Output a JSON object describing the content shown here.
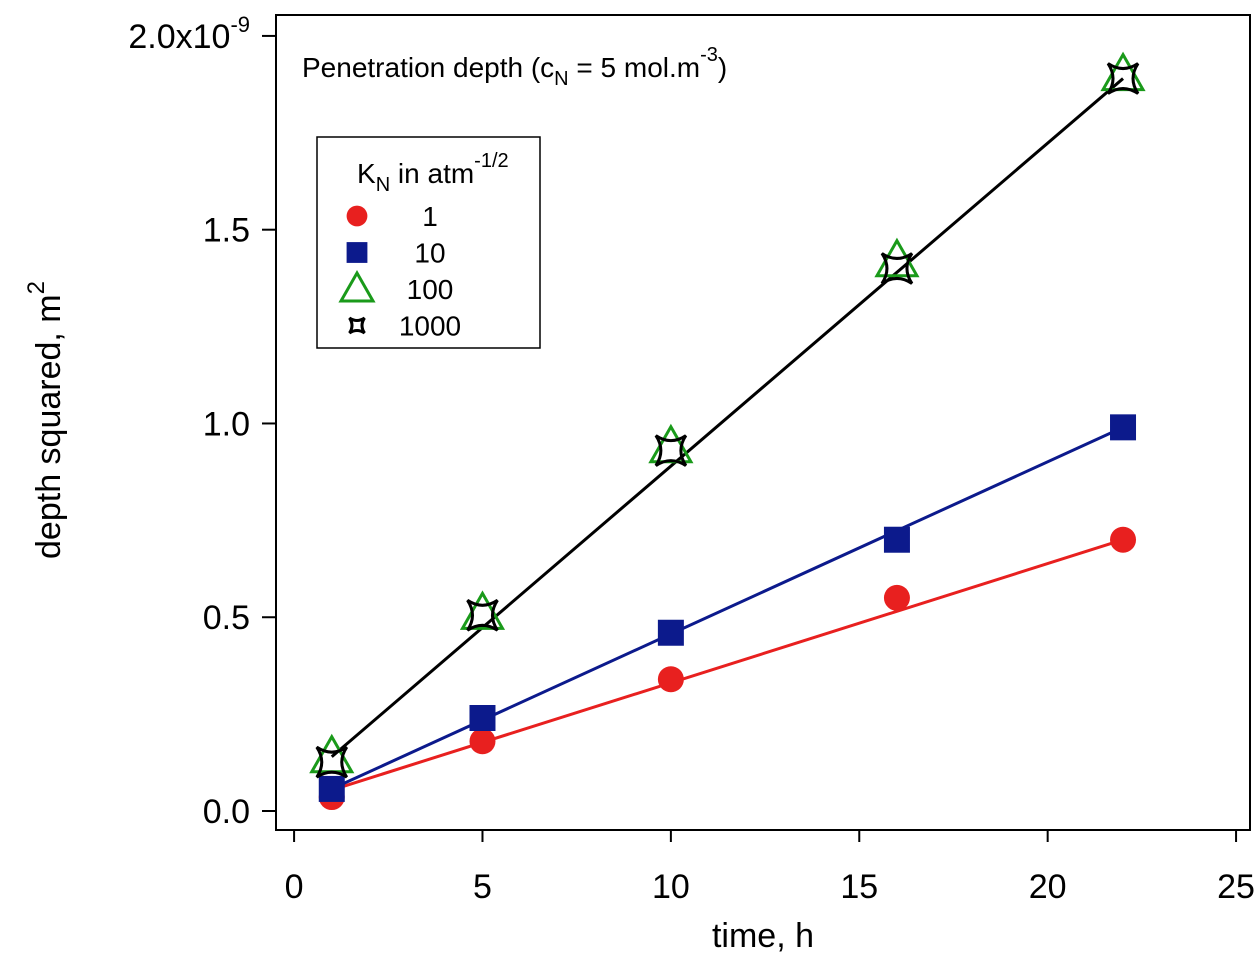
{
  "chart_data": {
    "type": "scatter",
    "annotation": {
      "main": "Penetration depth (c",
      "sub": "N",
      "mid": " = 5 mol.m",
      "sup": "-3",
      "end": ")"
    },
    "xlabel": "time, h",
    "ylabel": {
      "main": "depth squared, m",
      "sup": "2"
    },
    "legend_title": {
      "main": "K",
      "sub": "N",
      "rest": " in atm",
      "sup": "-1/2"
    },
    "x": [
      1,
      5,
      10,
      16,
      22
    ],
    "fit_x": [
      1,
      22
    ],
    "series": [
      {
        "name": "1",
        "marker": "circle",
        "color": "#e8201f",
        "values": [
          0.036,
          0.18,
          0.34,
          0.55,
          0.7
        ],
        "fit": [
          0.054,
          0.7
        ]
      },
      {
        "name": "10",
        "marker": "square",
        "color": "#0c1a8c",
        "values": [
          0.057,
          0.24,
          0.46,
          0.7,
          0.99
        ],
        "fit": [
          0.057,
          0.99
        ]
      },
      {
        "name": "100",
        "marker": "triangle",
        "color": "#1a9a1a",
        "values": [
          0.14,
          0.51,
          0.94,
          1.42,
          1.9
        ],
        "fit": null
      },
      {
        "name": "1000",
        "marker": "star",
        "color": "#000000",
        "values": [
          0.126,
          0.505,
          0.93,
          1.4,
          1.89
        ],
        "fit": [
          0.14,
          1.89
        ]
      }
    ],
    "xlim": [
      -0.48,
      25.37
    ],
    "ylim": [
      -0.049,
      2.054
    ],
    "xticks": [
      0,
      5,
      10,
      15,
      20,
      25
    ],
    "yticks": [
      {
        "value": 0,
        "label": "0.0"
      },
      0.5,
      {
        "value": 1,
        "label": "1.0"
      },
      1.5,
      {
        "value": 2,
        "label": "2.0x10",
        "exponent": "-9"
      }
    ]
  }
}
